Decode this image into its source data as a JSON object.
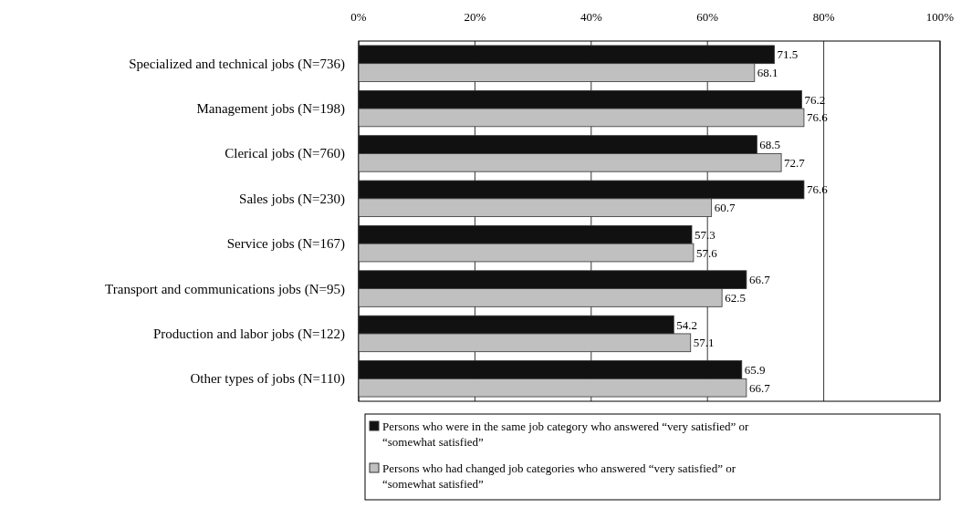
{
  "chart_data": {
    "type": "bar",
    "orientation": "horizontal",
    "categories": [
      "Specialized and technical jobs (N=736)",
      "Management jobs (N=198)",
      "Clerical jobs (N=760)",
      "Sales jobs (N=230)",
      "Service jobs (N=167)",
      "Transport and communications jobs (N=95)",
      "Production and labor jobs (N=122)",
      "Other types of jobs (N=110)"
    ],
    "series": [
      {
        "name": "Persons who were in the same job category who answered “very satisfied” or “somewhat satisfied”",
        "color": "#111111",
        "values": [
          71.5,
          76.2,
          68.5,
          76.6,
          57.3,
          66.7,
          54.2,
          65.9
        ]
      },
      {
        "name": "Persons who had changed job categories who answered “very satisfied” or “somewhat satisfied”",
        "color": "#c0c0c0",
        "values": [
          68.1,
          76.6,
          72.7,
          60.7,
          57.6,
          62.5,
          57.1,
          66.7
        ]
      }
    ],
    "xlim": [
      0,
      100
    ],
    "xticks": [
      {
        "value": 0,
        "label": "0%"
      },
      {
        "value": 20,
        "label": "20%"
      },
      {
        "value": 40,
        "label": "40%"
      },
      {
        "value": 60,
        "label": "60%"
      },
      {
        "value": 80,
        "label": "80%"
      },
      {
        "value": 100,
        "label": "100%"
      }
    ],
    "grid": "x",
    "data_labels": true,
    "legend": "bottom"
  }
}
